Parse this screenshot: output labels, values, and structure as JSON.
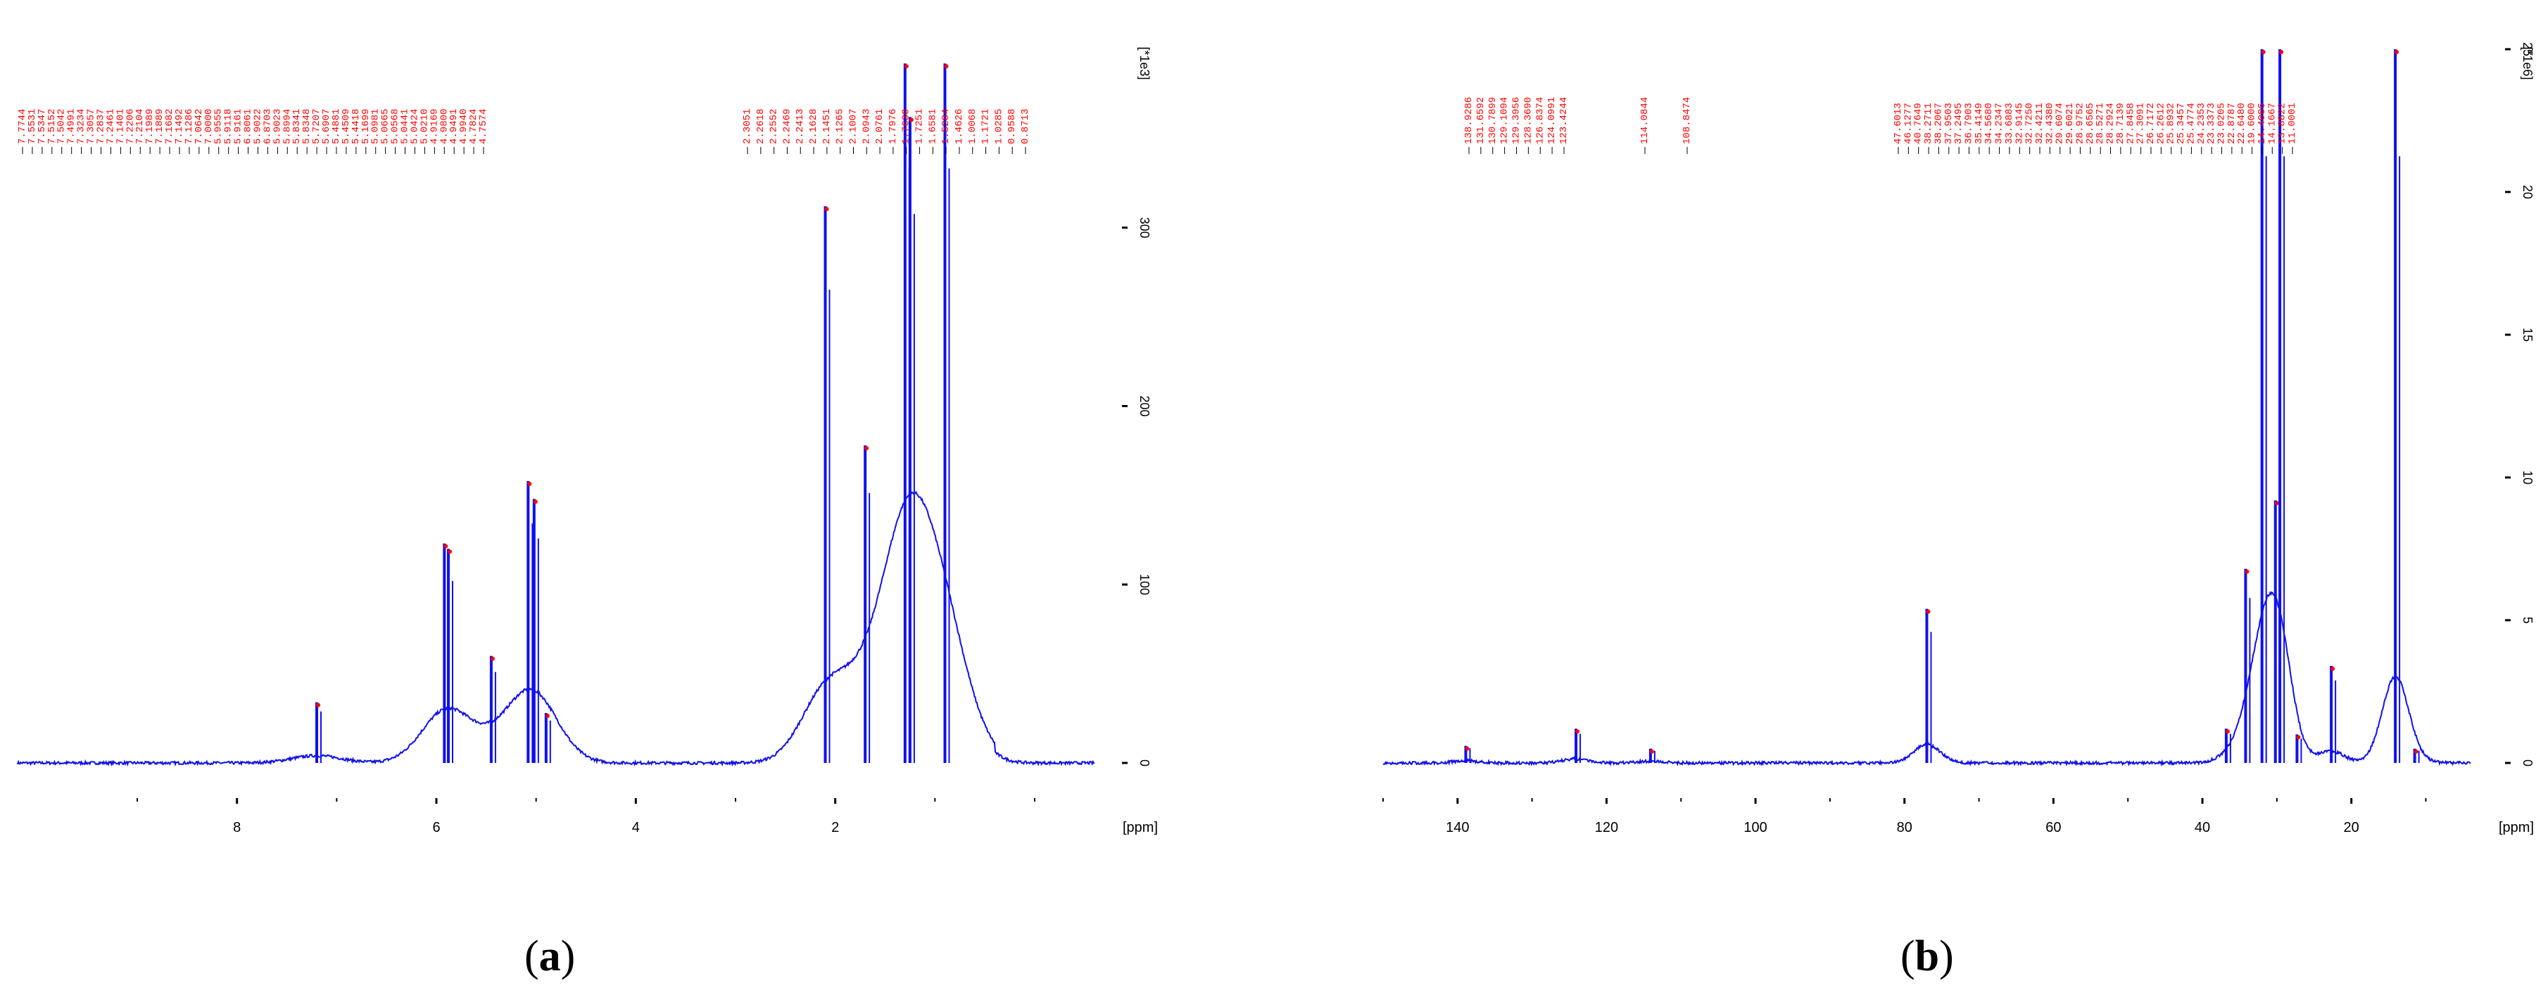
{
  "figure": {
    "captions": [
      {
        "open": "(",
        "letter": "a",
        "close": ")"
      },
      {
        "open": "(",
        "letter": "b",
        "close": ")"
      }
    ]
  },
  "chart_data": [
    {
      "type": "line",
      "panel": "a",
      "xlabel": "[ppm]",
      "ylabel": "[*1e3]",
      "x_reversed": true,
      "xlim": [
        10.2,
        -0.6
      ],
      "ylim": [
        -10,
        400
      ],
      "x_ticks": [
        8,
        6,
        4,
        2
      ],
      "y_ticks": [
        0,
        100,
        200,
        300
      ],
      "colors": {
        "trace": "#1010ee",
        "peak_labels": "#ff0000",
        "axes": "#000000"
      },
      "peak_labels_left": [
        "7.7744",
        "7.5531",
        "7.5347",
        "7.5152",
        "7.5042",
        "7.4991",
        "7.3234",
        "7.3057",
        "7.2837",
        "7.2461",
        "7.1401",
        "7.2206",
        "7.2104",
        "7.1989",
        "7.1889",
        "7.1682",
        "7.1492",
        "7.1286",
        "7.0642",
        "7.0000",
        "5.9555",
        "5.9118",
        "5.9161",
        "6.8061",
        "5.9022",
        "6.8703",
        "5.9023",
        "5.8994",
        "5.8341",
        "5.8348",
        "5.7207",
        "5.6907",
        "5.4881",
        "5.4509",
        "5.4418",
        "5.1699",
        "5.0981",
        "5.0665",
        "5.0568",
        "5.0441",
        "5.0424",
        "5.0210",
        "4.9169",
        "4.9800",
        "4.9491",
        "4.9940",
        "4.7824",
        "4.7574"
      ],
      "peak_labels_right": [
        "2.3051",
        "2.2618",
        "2.2552",
        "2.2469",
        "2.2413",
        "2.1628",
        "2.1451",
        "2.1265",
        "2.1007",
        "2.0943",
        "2.0761",
        "1.7976",
        "1.7630",
        "1.7251",
        "1.6581",
        "1.5284",
        "1.4626",
        "1.0068",
        "1.1721",
        "1.0285",
        "0.9588",
        "0.8713"
      ],
      "peaks": [
        {
          "x": 7.2,
          "y": 34
        },
        {
          "x": 5.92,
          "y": 123
        },
        {
          "x": 5.88,
          "y": 120
        },
        {
          "x": 5.45,
          "y": 60
        },
        {
          "x": 5.08,
          "y": 158
        },
        {
          "x": 5.02,
          "y": 148
        },
        {
          "x": 4.9,
          "y": 28
        },
        {
          "x": 2.1,
          "y": 312
        },
        {
          "x": 1.7,
          "y": 178
        },
        {
          "x": 1.3,
          "y": 392
        },
        {
          "x": 1.25,
          "y": 362
        },
        {
          "x": 0.9,
          "y": 392
        }
      ]
    },
    {
      "type": "line",
      "panel": "b",
      "xlabel": "[ppm]",
      "ylabel": "[*1e6]",
      "x_reversed": true,
      "xlim": [
        150,
        4
      ],
      "ylim": [
        -0.5,
        25
      ],
      "x_ticks": [
        140,
        120,
        100,
        80,
        60,
        40,
        20
      ],
      "y_ticks": [
        0,
        5,
        10,
        15,
        20,
        25
      ],
      "colors": {
        "trace": "#1010ee",
        "peak_labels": "#ff0000",
        "axes": "#000000"
      },
      "peak_labels_left": [
        "138.9286",
        "131.6592",
        "130.7899",
        "129.1094",
        "129.3956",
        "128.3690",
        "126.8374",
        "124.0991",
        "123.4244"
      ],
      "peak_labels_mid": [
        "114.0844",
        "108.8474"
      ],
      "peak_labels_right": [
        "47.6013",
        "46.1277",
        "40.7649",
        "38.2711",
        "38.2067",
        "37.9503",
        "37.2495",
        "36.7903",
        "35.4149",
        "34.5680",
        "34.2347",
        "33.6883",
        "32.9145",
        "32.7250",
        "32.4211",
        "32.4380",
        "29.6074",
        "29.6021",
        "28.9752",
        "28.6565",
        "28.5271",
        "28.2924",
        "28.7139",
        "27.8458",
        "27.3091",
        "26.7172",
        "26.2612",
        "25.8932",
        "25.3457",
        "25.4774",
        "24.2353",
        "23.3373",
        "23.0205",
        "22.8787",
        "22.6480",
        "19.6000",
        "14.4086",
        "14.1667",
        "13.8822",
        "11.0001"
      ],
      "peaks": [
        {
          "x": 138.9,
          "y": 0.6
        },
        {
          "x": 124.1,
          "y": 1.2
        },
        {
          "x": 114.1,
          "y": 0.5
        },
        {
          "x": 77.0,
          "y": 5.4
        },
        {
          "x": 36.8,
          "y": 1.2
        },
        {
          "x": 34.2,
          "y": 6.8
        },
        {
          "x": 32.0,
          "y": 25
        },
        {
          "x": 30.2,
          "y": 9.2
        },
        {
          "x": 29.6,
          "y": 25
        },
        {
          "x": 27.3,
          "y": 1.0
        },
        {
          "x": 22.7,
          "y": 3.4
        },
        {
          "x": 14.1,
          "y": 25
        },
        {
          "x": 11.5,
          "y": 0.5
        }
      ]
    }
  ]
}
